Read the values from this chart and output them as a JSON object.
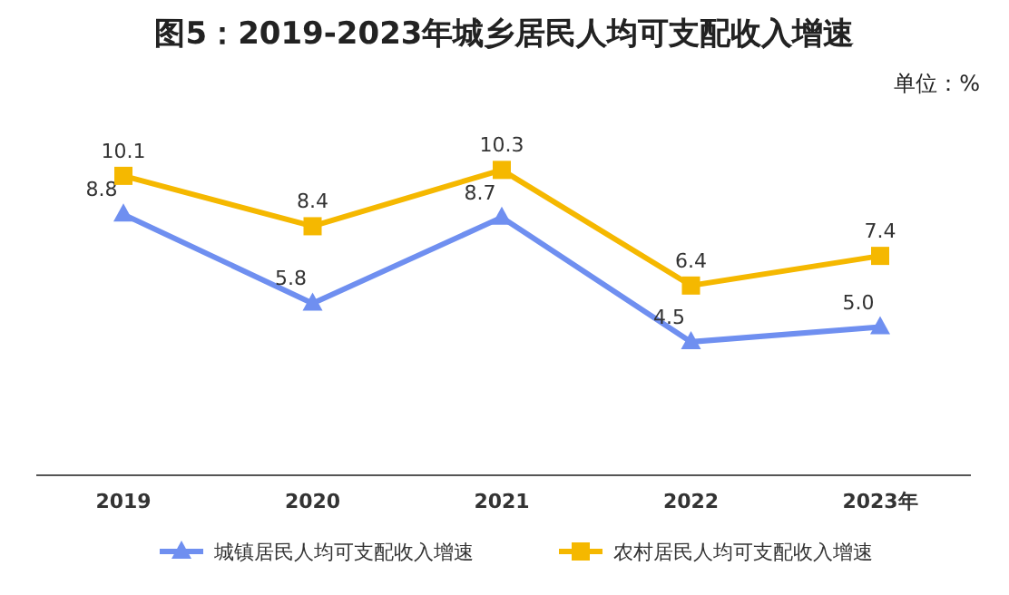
{
  "chart_data": {
    "type": "line",
    "title": "图5：2019-2023年城乡居民人均可支配收入增速",
    "annotations": [
      "单位：%"
    ],
    "categories": [
      "2019",
      "2020",
      "2021",
      "2022",
      "2023年"
    ],
    "series": [
      {
        "name": "城镇居民人均可支配收入增速",
        "color": "#6f8ff0",
        "marker": "triangle",
        "values": [
          8.8,
          5.8,
          8.7,
          4.5,
          5.0
        ],
        "value_labels": [
          "8.8",
          "5.8",
          "8.7",
          "4.5",
          "5.0"
        ]
      },
      {
        "name": "农村居民人均可支配收入增速",
        "color": "#f5b800",
        "marker": "square",
        "values": [
          10.1,
          8.4,
          10.3,
          6.4,
          7.4
        ],
        "value_labels": [
          "10.1",
          "8.4",
          "10.3",
          "6.4",
          "7.4"
        ]
      }
    ],
    "legend": "bottom",
    "grid": false
  }
}
